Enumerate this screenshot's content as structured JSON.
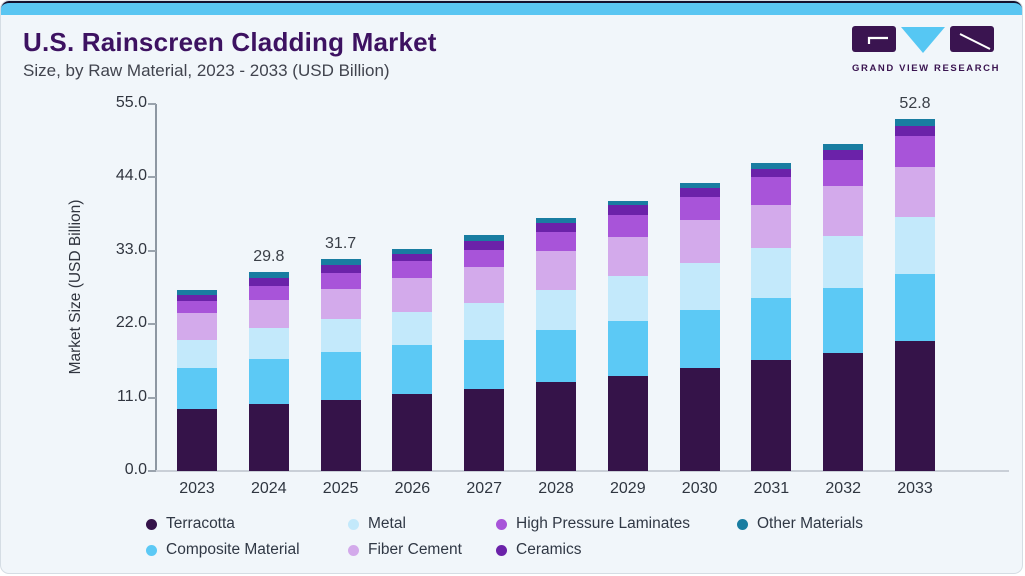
{
  "header": {
    "title": "U.S. Rainscreen Cladding Market",
    "subtitle": "Size, by Raw Material, 2023 - 2033 (USD Billion)",
    "logo_text": "GRAND VIEW RESEARCH"
  },
  "colors": {
    "card_background": "#f1f6fa",
    "top_accent": "#5ac6f2",
    "title_text": "#3d1261",
    "axis_line": "#8d97a2",
    "baseline": "#c9cfd7",
    "logo_purple": "#3a1450",
    "logo_blue": "#56c7f3"
  },
  "chart_data": {
    "type": "bar",
    "stacked": true,
    "title": "U.S. Rainscreen Cladding Market Size, by Raw Material, 2023 - 2033 (USD Billion)",
    "xlabel": "",
    "ylabel": "Market Size (USD Billion)",
    "ylim": [
      0,
      55
    ],
    "ytick_labels": [
      "0.0",
      "11.0",
      "22.0",
      "33.0",
      "44.0",
      "55.0"
    ],
    "grid": false,
    "legend_position": "bottom",
    "categories": [
      "2023",
      "2024",
      "2025",
      "2026",
      "2027",
      "2028",
      "2029",
      "2030",
      "2031",
      "2032",
      "2033"
    ],
    "bar_total_labels": {
      "2024": "29.8",
      "2025": "31.7",
      "2033": "52.8"
    },
    "totals": [
      27.1,
      29.8,
      31.7,
      33.2,
      35.4,
      37.9,
      40.5,
      43.2,
      46.2,
      49.0,
      52.8
    ],
    "series": [
      {
        "name": "Terracotta",
        "color": "#351349",
        "values": [
          9.3,
          10.0,
          10.7,
          11.5,
          12.3,
          13.3,
          14.3,
          15.5,
          16.6,
          17.7,
          19.4
        ]
      },
      {
        "name": "Composite Material",
        "color": "#5cc9f5",
        "values": [
          6.2,
          6.8,
          7.2,
          7.4,
          7.4,
          7.8,
          8.2,
          8.6,
          9.3,
          9.7,
          10.1
        ]
      },
      {
        "name": "Metal",
        "color": "#c3e9fb",
        "values": [
          4.2,
          4.6,
          4.8,
          4.9,
          5.5,
          6.0,
          6.7,
          7.0,
          7.5,
          7.8,
          8.6
        ]
      },
      {
        "name": "Fiber Cement",
        "color": "#d3aaeb",
        "values": [
          3.9,
          4.2,
          4.6,
          5.1,
          5.4,
          5.8,
          5.9,
          6.5,
          6.4,
          7.5,
          7.5
        ]
      },
      {
        "name": "High Pressure Laminates",
        "color": "#a854d9",
        "values": [
          1.9,
          2.1,
          2.4,
          2.6,
          2.5,
          2.9,
          3.3,
          3.4,
          4.2,
          3.9,
          4.6
        ]
      },
      {
        "name": "Ceramics",
        "color": "#6b22a9",
        "values": [
          0.9,
          1.2,
          1.2,
          1.0,
          1.4,
          1.3,
          1.4,
          1.4,
          1.3,
          1.5,
          1.5
        ]
      },
      {
        "name": "Other Materials",
        "color": "#197da1",
        "values": [
          0.7,
          0.9,
          0.8,
          0.7,
          0.9,
          0.8,
          0.7,
          0.8,
          0.9,
          0.9,
          1.1
        ]
      }
    ],
    "legend_order": [
      "Terracotta",
      "Composite Material",
      "Metal",
      "Fiber Cement",
      "High Pressure Laminates",
      "Ceramics",
      "Other Materials"
    ]
  }
}
